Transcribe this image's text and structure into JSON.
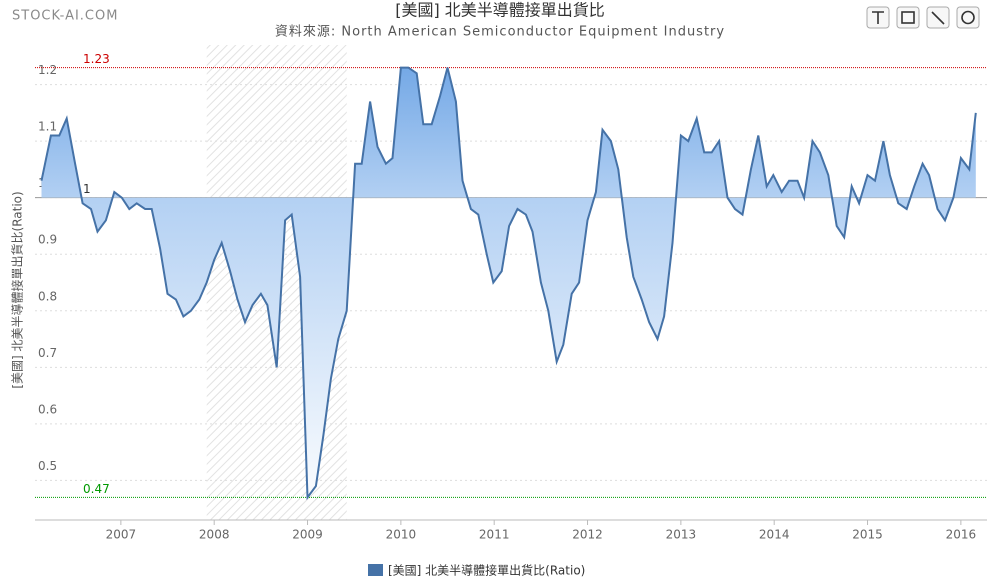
{
  "chart_data": {
    "type": "area",
    "watermark": "STOCK-AI.COM",
    "title": "[美國] 北美半導體接單出貨比",
    "subtitle": "資料來源: North American Semiconductor Equipment Industry",
    "y_label": "[美國] 北美半導體接單出貨比(Ratio)",
    "xlim": [
      2006.08,
      2016.28
    ],
    "xticks": [
      2007,
      2008,
      2009,
      2010,
      2011,
      2012,
      2013,
      2014,
      2015,
      2016
    ],
    "ylim": [
      0.43,
      1.27
    ],
    "yticks": [
      0.5,
      0.6,
      0.7,
      0.8,
      0.9,
      1,
      1.1,
      1.2
    ],
    "grid": true,
    "threshold": 1,
    "reference_lines": [
      {
        "value": 1.23,
        "color": "#cc0000"
      },
      {
        "value": 1,
        "color": "#9a9a9a"
      },
      {
        "value": 0.47,
        "color": "#009900"
      }
    ],
    "bands": [
      {
        "from": 2007.92,
        "to": 2009.42
      }
    ],
    "legend": "bottom",
    "x": [
      2006.15,
      2006.25,
      2006.34,
      2006.42,
      2006.51,
      2006.59,
      2006.68,
      2006.75,
      2006.84,
      2006.93,
      2007.01,
      2007.09,
      2007.17,
      2007.26,
      2007.33,
      2007.42,
      2007.5,
      2007.59,
      2007.67,
      2007.75,
      2007.84,
      2007.92,
      2008.0,
      2008.08,
      2008.17,
      2008.25,
      2008.33,
      2008.41,
      2008.5,
      2008.57,
      2008.67,
      2008.76,
      2008.83,
      2008.92,
      2009.0,
      2009.09,
      2009.17,
      2009.25,
      2009.33,
      2009.42,
      2009.51,
      2009.58,
      2009.67,
      2009.75,
      2009.84,
      2009.91,
      2010.0,
      2010.08,
      2010.17,
      2010.24,
      2010.33,
      2010.42,
      2010.5,
      2010.59,
      2010.66,
      2010.75,
      2010.83,
      2010.92,
      2010.99,
      2011.08,
      2011.16,
      2011.25,
      2011.34,
      2011.41,
      2011.5,
      2011.58,
      2011.67,
      2011.74,
      2011.83,
      2011.91,
      2012.0,
      2012.09,
      2012.16,
      2012.25,
      2012.33,
      2012.42,
      2012.49,
      2012.58,
      2012.66,
      2012.75,
      2012.82,
      2012.91,
      2013.0,
      2013.08,
      2013.17,
      2013.25,
      2013.33,
      2013.41,
      2013.5,
      2013.58,
      2013.66,
      2013.75,
      2013.83,
      2013.92,
      2013.99,
      2014.08,
      2014.16,
      2014.25,
      2014.32,
      2014.41,
      2014.49,
      2014.58,
      2014.67,
      2014.75,
      2014.83,
      2014.91,
      2015.0,
      2015.08,
      2015.17,
      2015.24,
      2015.33,
      2015.42,
      2015.5,
      2015.59,
      2015.66,
      2015.75,
      2015.83,
      2015.92,
      2016.0,
      2016.09,
      2016.16
    ],
    "series": [
      {
        "name": "[美國] 北美半導體接單出貨比(Ratio)",
        "color": "#4572a7",
        "values": [
          1.03,
          1.11,
          1.11,
          1.14,
          1.06,
          0.99,
          0.98,
          0.94,
          0.96,
          1.01,
          1.0,
          0.98,
          0.99,
          0.98,
          0.98,
          0.91,
          0.83,
          0.82,
          0.79,
          0.8,
          0.82,
          0.85,
          0.89,
          0.92,
          0.87,
          0.82,
          0.78,
          0.81,
          0.83,
          0.81,
          0.7,
          0.96,
          0.97,
          0.86,
          0.47,
          0.49,
          0.58,
          0.68,
          0.75,
          0.8,
          1.06,
          1.06,
          1.17,
          1.09,
          1.06,
          1.07,
          1.23,
          1.23,
          1.22,
          1.13,
          1.13,
          1.18,
          1.23,
          1.17,
          1.03,
          0.98,
          0.97,
          0.9,
          0.85,
          0.87,
          0.95,
          0.98,
          0.97,
          0.94,
          0.85,
          0.8,
          0.71,
          0.74,
          0.83,
          0.85,
          0.96,
          1.01,
          1.12,
          1.1,
          1.05,
          0.93,
          0.86,
          0.82,
          0.78,
          0.75,
          0.79,
          0.92,
          1.11,
          1.1,
          1.14,
          1.08,
          1.08,
          1.1,
          1.0,
          0.98,
          0.97,
          1.05,
          1.11,
          1.02,
          1.04,
          1.01,
          1.03,
          1.03,
          1.0,
          1.1,
          1.08,
          1.04,
          0.95,
          0.93,
          1.02,
          0.99,
          1.04,
          1.03,
          1.1,
          1.04,
          0.99,
          0.98,
          1.02,
          1.06,
          1.04,
          0.98,
          0.96,
          1.0,
          1.07,
          1.05,
          1.15
        ]
      }
    ]
  }
}
